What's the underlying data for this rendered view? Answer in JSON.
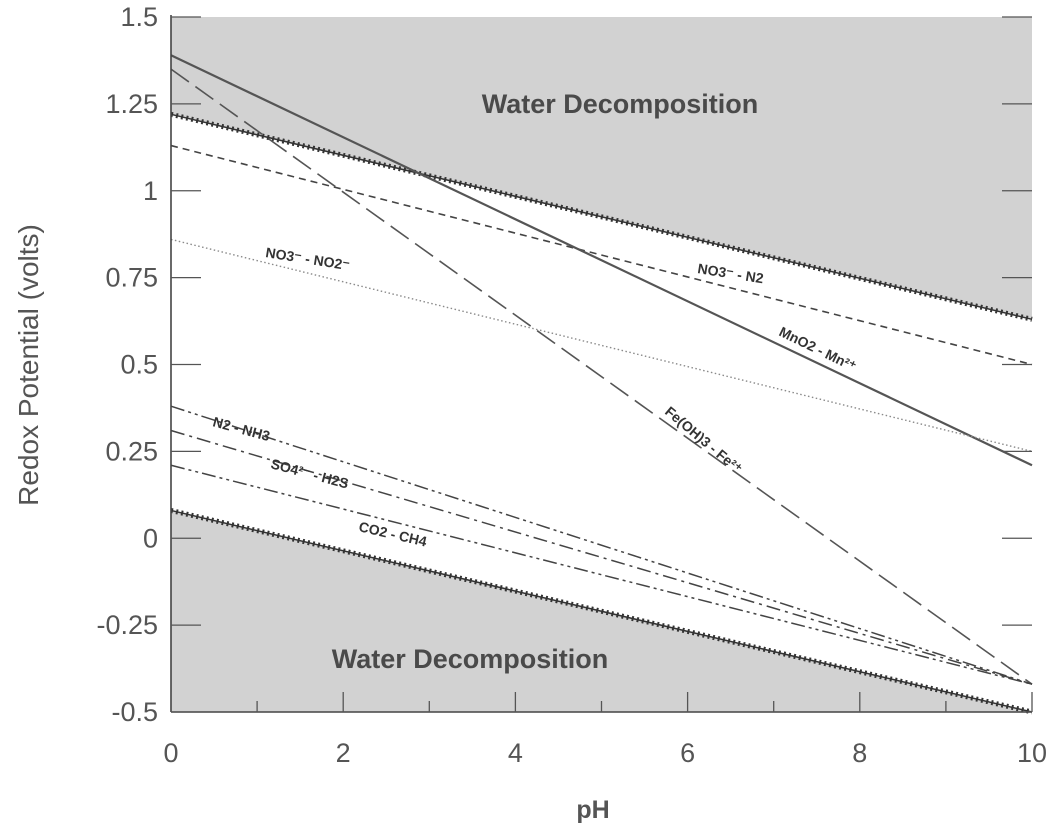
{
  "chart_data": {
    "type": "line",
    "xlabel": "pH",
    "ylabel": "Redox Potential (volts)",
    "xlim": [
      0,
      10
    ],
    "ylim": [
      -0.5,
      1.5
    ],
    "x_ticks": [
      0,
      2,
      4,
      6,
      8,
      10
    ],
    "x_tick_labels": [
      "0",
      "2",
      "4",
      "6",
      "8",
      "10"
    ],
    "y_ticks": [
      -0.5,
      -0.25,
      0,
      0.25,
      0.5,
      0.75,
      1,
      1.25,
      1.5
    ],
    "y_tick_labels": [
      "-0.5",
      "-0.25",
      "0",
      "0.25",
      "0.5",
      "0.75",
      "1",
      "1.25",
      "1.5"
    ],
    "grid": false,
    "regions": [
      {
        "label": "Water Decomposition",
        "bound": "upper_water_limit",
        "side": "above",
        "color": "#d2d2d2"
      },
      {
        "label": "Water Decomposition",
        "bound": "lower_water_limit",
        "side": "below",
        "color": "#d2d2d2"
      }
    ],
    "series": [
      {
        "id": "upper_water_limit",
        "x": [
          0,
          10
        ],
        "y": [
          1.22,
          0.63
        ],
        "style": "dotted-thick",
        "color": "#333333"
      },
      {
        "id": "lower_water_limit",
        "x": [
          0,
          10
        ],
        "y": [
          0.08,
          -0.5
        ],
        "style": "dotted-thick",
        "color": "#333333"
      },
      {
        "id": "no3_n2",
        "label": "NO3⁻ - N2",
        "x": [
          0,
          10
        ],
        "y": [
          1.13,
          0.5
        ],
        "style": "dashed-short",
        "color": "#444444"
      },
      {
        "id": "mno2_mn",
        "label": "MnO2 - Mn²⁺",
        "x": [
          0,
          10
        ],
        "y": [
          1.39,
          0.21
        ],
        "style": "solid",
        "color": "#555555"
      },
      {
        "id": "no3_no2",
        "label": "NO3⁻ - NO2⁻",
        "x": [
          0,
          10
        ],
        "y": [
          0.86,
          0.25
        ],
        "style": "dotted-fine",
        "color": "#8a8a8a"
      },
      {
        "id": "feoh3_fe",
        "label": "Fe(OH)3 - Fe²⁺",
        "x": [
          0,
          10
        ],
        "y": [
          1.35,
          -0.42
        ],
        "style": "long-dash",
        "color": "#555555"
      },
      {
        "id": "n2_nh3",
        "label": "N2 - NH3",
        "x": [
          0,
          10
        ],
        "y": [
          0.38,
          -0.42
        ],
        "style": "dash-dot-dot",
        "color": "#444444"
      },
      {
        "id": "so4_h2s",
        "label": "SO4²⁻ - H2S",
        "x": [
          0,
          10
        ],
        "y": [
          0.31,
          -0.42
        ],
        "style": "dash-dot",
        "color": "#444444"
      },
      {
        "id": "co2_ch4",
        "label": "CO2 - CH4",
        "x": [
          0,
          10
        ],
        "y": [
          0.21,
          -0.42
        ],
        "style": "dash-dot-dot",
        "color": "#444444"
      }
    ]
  }
}
